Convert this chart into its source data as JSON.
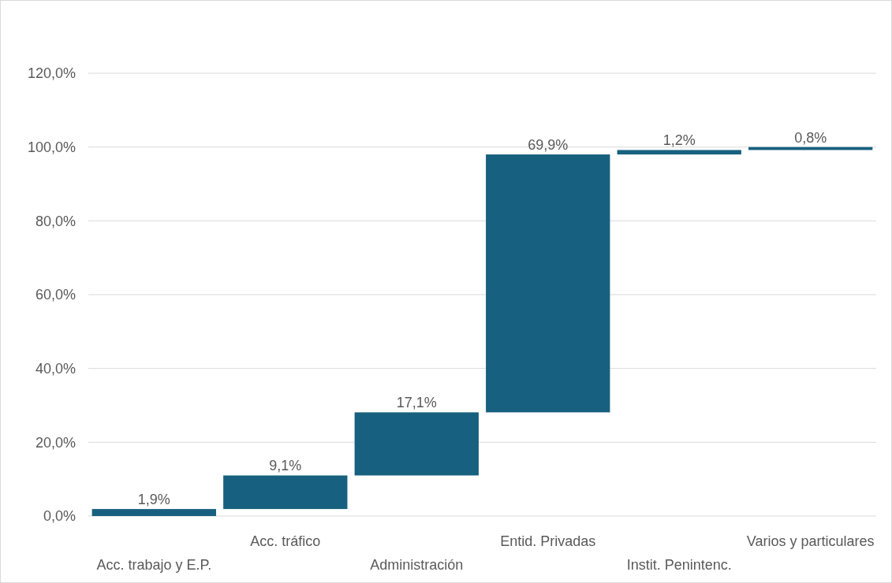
{
  "chart_data": {
    "type": "bar",
    "categories": [
      "Acc. trabajo y E.P.",
      "Acc. tráfico",
      "Administración",
      "Entid. Privadas",
      "Instit. Penintenc.",
      "Varios y particulares"
    ],
    "values": [
      1.9,
      9.1,
      17.1,
      69.9,
      1.2,
      0.8
    ],
    "base": [
      0,
      1.9,
      11.0,
      28.1,
      98.0,
      99.2
    ],
    "color": "#17607f",
    "value_labels": [
      "1,9%",
      "9,1%",
      "17,1%",
      "69,9%",
      "1,2%",
      "0,8%"
    ],
    "ylim": [
      0,
      120
    ],
    "yticks": [
      {
        "value": 0,
        "label": "0,0%"
      },
      {
        "value": 20,
        "label": "20,0%"
      },
      {
        "value": 40,
        "label": "40,0%"
      },
      {
        "value": 60,
        "label": "60,0%"
      },
      {
        "value": 80,
        "label": "80,0%"
      },
      {
        "value": 100,
        "label": "100,0%"
      },
      {
        "value": 120,
        "label": "120,0%"
      }
    ],
    "grid": "y"
  }
}
